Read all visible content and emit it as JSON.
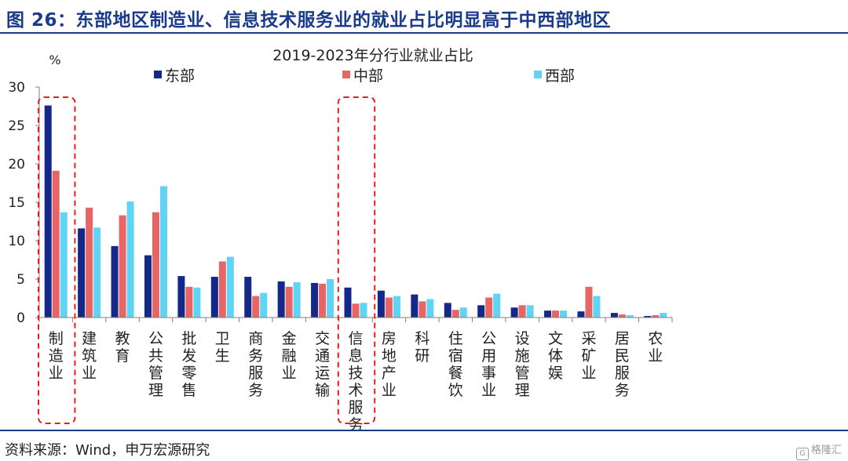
{
  "figure": {
    "title": "图 26：东部地区制造业、信息技术服务业的就业占比明显高于中西部地区",
    "source": "资料来源：Wind，申万宏源研究",
    "watermark": "格隆汇",
    "watermark_icon": "g-logo-icon"
  },
  "colors": {
    "title": "#1a3b8c",
    "east": "#14288a",
    "central": "#e86565",
    "west": "#5fd4f5",
    "highlight": "#e02020",
    "axis": "#808080"
  },
  "chart_data": {
    "type": "bar",
    "title": "2019-2023年分行业就业占比",
    "ylabel": "%",
    "ylim": [
      0,
      30
    ],
    "yticks": [
      0,
      5,
      10,
      15,
      20,
      25,
      30
    ],
    "grid": false,
    "legend_position": "top",
    "categories": [
      "制造业",
      "建筑业",
      "教育",
      "公共管理",
      "批发零售",
      "卫生",
      "商务服务",
      "金融业",
      "交通运输",
      "信息技术服务",
      "房地产业",
      "科研",
      "住宿餐饮",
      "公用事业",
      "设施管理",
      "文体娱",
      "采矿业",
      "居民服务",
      "农业"
    ],
    "series": [
      {
        "name": "东部",
        "values": [
          27.6,
          11.6,
          9.3,
          8.1,
          5.4,
          5.3,
          5.3,
          4.7,
          4.5,
          3.9,
          3.5,
          3.0,
          1.9,
          1.6,
          1.3,
          0.9,
          0.8,
          0.6,
          0.2
        ]
      },
      {
        "name": "中部",
        "values": [
          19.1,
          14.3,
          13.3,
          13.7,
          4.0,
          7.3,
          2.8,
          4.0,
          4.4,
          1.8,
          2.6,
          2.1,
          1.0,
          2.6,
          1.6,
          0.9,
          4.0,
          0.4,
          0.3
        ]
      },
      {
        "name": "西部",
        "values": [
          13.7,
          11.7,
          15.1,
          17.1,
          3.9,
          7.9,
          3.2,
          4.6,
          5.0,
          1.9,
          2.8,
          2.4,
          1.3,
          3.1,
          1.6,
          0.9,
          2.8,
          0.3,
          0.6
        ]
      }
    ],
    "highlighted_categories": [
      "制造业",
      "信息技术服务"
    ]
  }
}
